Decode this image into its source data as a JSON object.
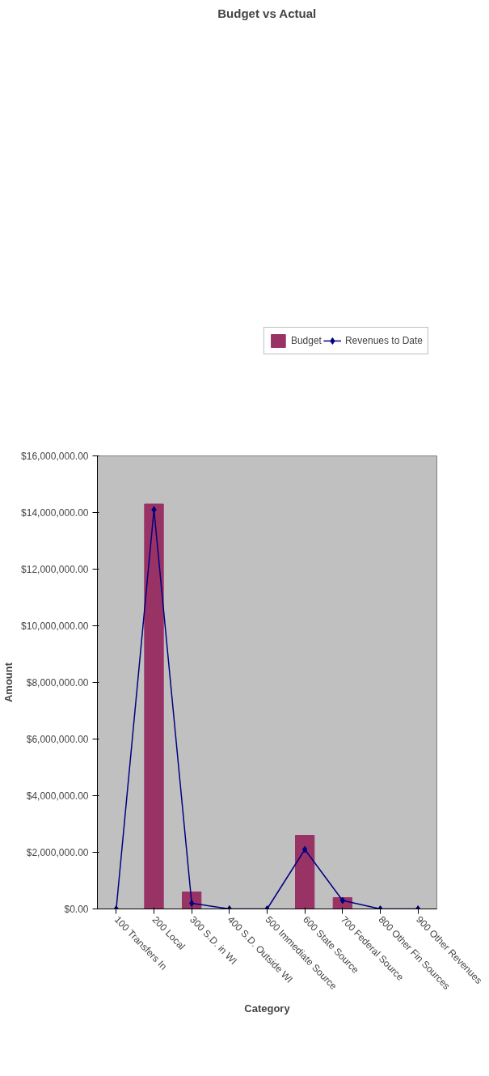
{
  "chart_data": {
    "type": "bar",
    "title": "Budget vs Actual",
    "xlabel": "Category",
    "ylabel": "Amount",
    "categories": [
      "100 Transfers In",
      "200 Local",
      "300 S.D. in WI",
      "400 S.D. Outside WI",
      "500 Immediate Source",
      "600 State Source",
      "700 Federal Source",
      "800 Other Fin Sources",
      "900 Other Revenues"
    ],
    "series": [
      {
        "name": "Budget",
        "color": "#993366",
        "values": [
          0,
          14300000,
          600000,
          0,
          0,
          2600000,
          400000,
          0,
          0
        ]
      },
      {
        "name": "Revenues to Date",
        "type": "line",
        "color": "#000080",
        "values": [
          0,
          14100000,
          200000,
          0,
          0,
          2100000,
          300000,
          0,
          0
        ]
      }
    ],
    "ylim": [
      0,
      16000000
    ],
    "yticks": [
      {
        "value": 0,
        "label": "$0.00"
      },
      {
        "value": 2000000,
        "label": "$2,000,000.00"
      },
      {
        "value": 4000000,
        "label": "$4,000,000.00"
      },
      {
        "value": 6000000,
        "label": "$6,000,000.00"
      },
      {
        "value": 8000000,
        "label": "$8,000,000.00"
      },
      {
        "value": 10000000,
        "label": "$10,000,000.00"
      },
      {
        "value": 12000000,
        "label": "$12,000,000.00"
      },
      {
        "value": 14000000,
        "label": "$14,000,000.00"
      },
      {
        "value": 16000000,
        "label": "$16,000,000.00"
      }
    ],
    "legend": "top right",
    "marker": "diamond",
    "grid": false
  }
}
